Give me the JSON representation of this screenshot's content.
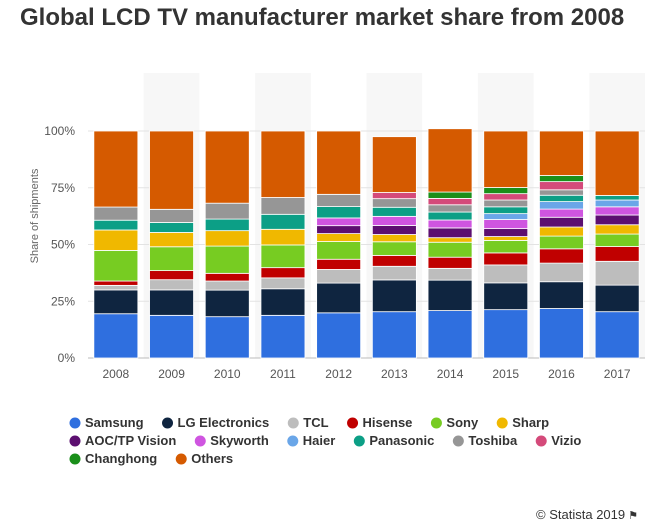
{
  "page": {
    "title": "Global LCD TV manufacturer market share from 2008",
    "credit": "© Statista 2019",
    "credit_icon": "flag-icon"
  },
  "chart_data": {
    "type": "bar",
    "stacked": true,
    "percent_axis": true,
    "title": "Global LCD TV manufacturer market share from 2008",
    "xlabel": "",
    "ylabel": "Share of shipments",
    "ylim": [
      0,
      100
    ],
    "yticks": [
      0,
      25,
      50,
      75,
      100
    ],
    "ytick_labels": [
      "0%",
      "25%",
      "50%",
      "75%",
      "100%"
    ],
    "grid": true,
    "legend_position": "bottom",
    "categories": [
      "2008",
      "2009",
      "2010",
      "2011",
      "2012",
      "2013",
      "2014",
      "2015",
      "2016",
      "2017"
    ],
    "series": [
      {
        "name": "Samsung",
        "color": "#2f6fdf",
        "values": [
          19.5,
          18.8,
          18.2,
          18.8,
          19.9,
          20.4,
          20.9,
          21.3,
          21.8,
          20.4
        ]
      },
      {
        "name": "LG Electronics",
        "color": "#0f2540",
        "values": [
          10.5,
          11.2,
          11.7,
          11.7,
          13.1,
          14.0,
          13.4,
          11.8,
          11.8,
          11.7
        ]
      },
      {
        "name": "TCL",
        "color": "#bdbdbd",
        "values": [
          2.0,
          4.5,
          4.0,
          4.8,
          6.0,
          6.0,
          5.2,
          7.9,
          8.2,
          10.5
        ]
      },
      {
        "name": "Hisense",
        "color": "#c00000",
        "values": [
          1.9,
          4.0,
          3.4,
          4.5,
          4.5,
          4.8,
          4.9,
          5.3,
          6.3,
          6.5
        ]
      },
      {
        "name": "Sony",
        "color": "#77cc22",
        "values": [
          13.5,
          10.5,
          12.0,
          10.0,
          7.8,
          6.0,
          6.6,
          5.5,
          5.6,
          5.5
        ]
      },
      {
        "name": "Sharp",
        "color": "#f0b800",
        "values": [
          9.0,
          6.3,
          6.8,
          6.9,
          3.5,
          3.2,
          2.0,
          1.7,
          4.0,
          4.1
        ]
      },
      {
        "name": "AOC/TP Vision",
        "color": "#5c0f70",
        "values": [
          0,
          0,
          0,
          0,
          3.5,
          4.0,
          4.3,
          3.5,
          4.3,
          4.3
        ]
      },
      {
        "name": "Skyworth",
        "color": "#cf55e0",
        "values": [
          0,
          0,
          0,
          0,
          3.4,
          4.0,
          3.5,
          4.0,
          3.6,
          3.6
        ]
      },
      {
        "name": "Haier",
        "color": "#6aa6e8",
        "values": [
          0,
          0,
          0,
          0,
          0,
          0,
          0,
          2.6,
          3.3,
          3.0
        ]
      },
      {
        "name": "Panasonic",
        "color": "#0c9f86",
        "values": [
          4.3,
          4.4,
          5.1,
          6.6,
          5.0,
          4.0,
          3.5,
          3.0,
          2.8,
          2.0
        ]
      },
      {
        "name": "Toshiba",
        "color": "#969696",
        "values": [
          5.8,
          5.8,
          7.0,
          7.4,
          5.4,
          3.8,
          3.2,
          3.0,
          2.4,
          0
        ]
      },
      {
        "name": "Vizio",
        "color": "#d44a7a",
        "values": [
          0,
          0,
          0,
          0,
          0,
          2.7,
          2.8,
          2.8,
          3.6,
          0
        ]
      },
      {
        "name": "Changhong",
        "color": "#1a8f1a",
        "values": [
          0,
          0,
          0,
          0,
          0,
          0,
          2.8,
          2.7,
          2.7,
          0
        ]
      },
      {
        "name": "Others",
        "color": "#d55a00",
        "values": [
          33.5,
          34.5,
          31.8,
          29.3,
          27.9,
          24.6,
          27.9,
          24.9,
          19.6,
          28.4
        ]
      }
    ]
  }
}
